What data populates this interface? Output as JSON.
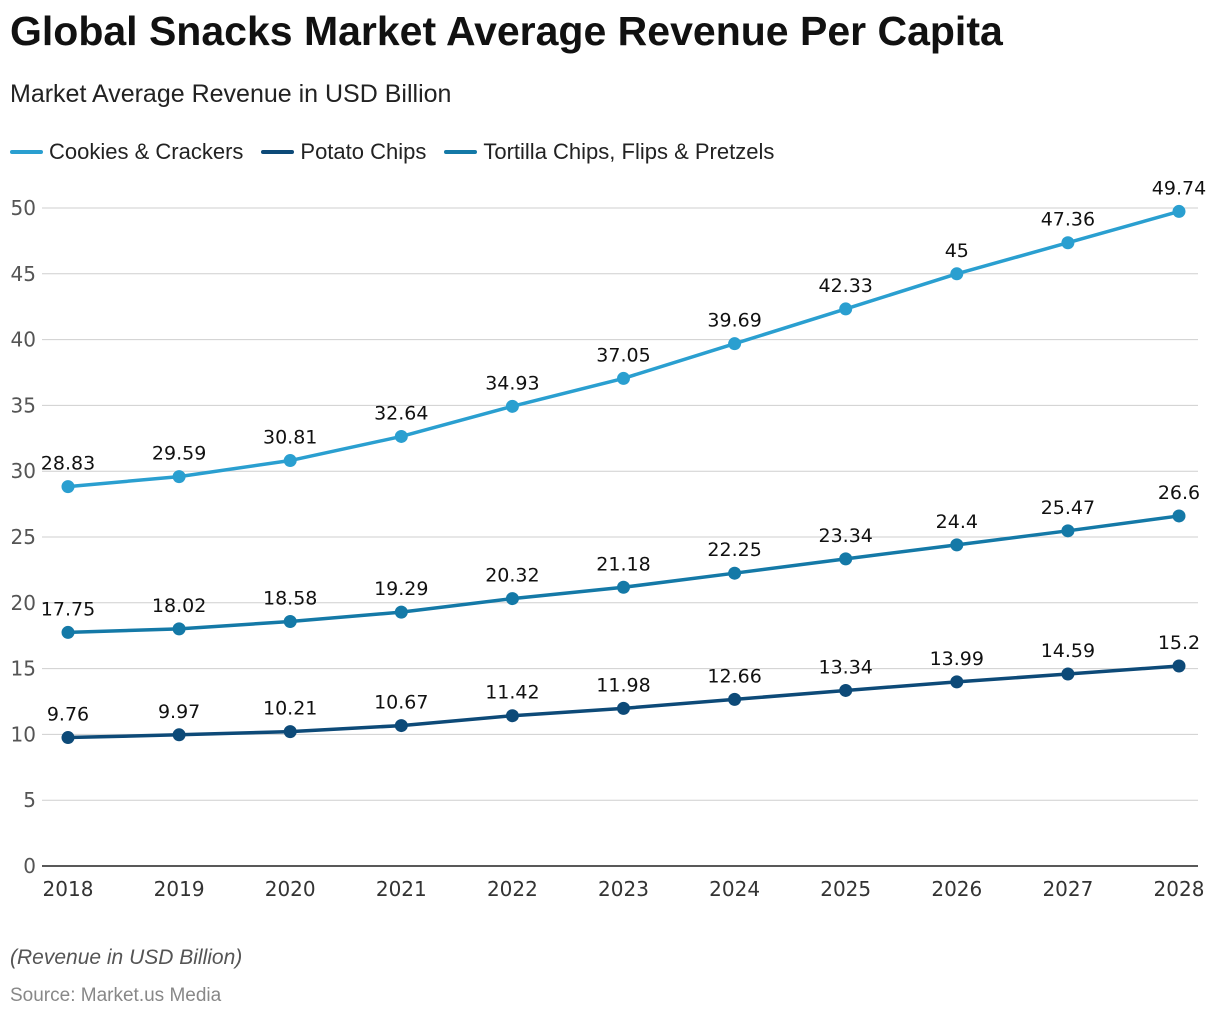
{
  "header": {
    "title": "Global Snacks Market Average Revenue Per Capita",
    "subtitle": "Market Average Revenue in USD Billion"
  },
  "footer": {
    "note": "(Revenue in USD Billion)",
    "source": "Source: Market.us Media"
  },
  "chart_data": {
    "type": "line",
    "title": "Global Snacks Market Average Revenue Per Capita",
    "subtitle": "Market Average Revenue in USD Billion",
    "xlabel": "",
    "ylabel": "",
    "x": [
      "2018",
      "2019",
      "2020",
      "2021",
      "2022",
      "2023",
      "2024",
      "2025",
      "2026",
      "2027",
      "2028"
    ],
    "ylim": [
      0,
      50
    ],
    "yticks": [
      "0",
      "5",
      "10",
      "15",
      "20",
      "25",
      "30",
      "35",
      "40",
      "45",
      "50"
    ],
    "grid": true,
    "legend": "top-left",
    "series": [
      {
        "name": "Cookies & Crackers",
        "color": "#2a9fd0",
        "values": [
          28.83,
          29.59,
          30.81,
          32.64,
          34.93,
          37.05,
          39.69,
          42.33,
          45,
          47.36,
          49.74
        ]
      },
      {
        "name": "Potato Chips",
        "color": "#0d4a78",
        "values": [
          9.76,
          9.97,
          10.21,
          10.67,
          11.42,
          11.98,
          12.66,
          13.34,
          13.99,
          14.59,
          15.2
        ]
      },
      {
        "name": "Tortilla Chips, Flips & Pretzels",
        "color": "#1479a7",
        "values": [
          17.75,
          18.02,
          18.58,
          19.29,
          20.32,
          21.18,
          22.25,
          23.34,
          24.4,
          25.47,
          26.6
        ]
      }
    ]
  }
}
